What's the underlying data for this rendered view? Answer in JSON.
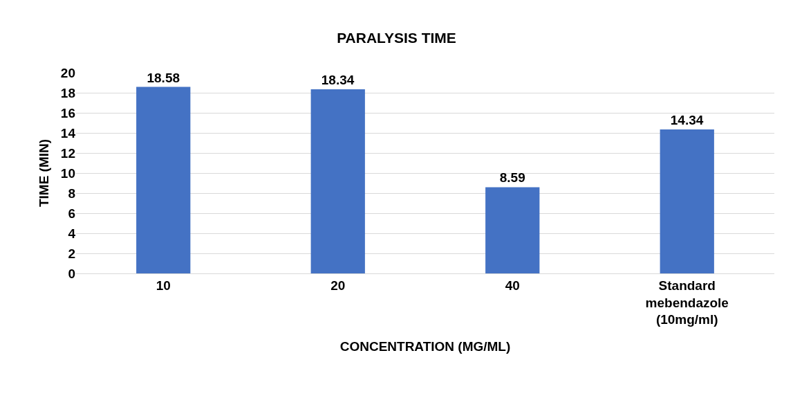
{
  "chart_data": {
    "type": "bar",
    "title": "PARALYSIS TIME",
    "xlabel": "CONCENTRATION (MG/ML)",
    "ylabel": "TIME (MIN)",
    "categories": [
      "10",
      "20",
      "40",
      "Standard mebendazole (10mg/ml)"
    ],
    "values": [
      18.58,
      18.34,
      8.59,
      14.34
    ],
    "color": "#4472c4",
    "ylim": [
      0,
      20
    ],
    "yticks": [
      0,
      2,
      4,
      6,
      8,
      10,
      12,
      14,
      16,
      18,
      20
    ],
    "grid": "y",
    "data_labels": true
  }
}
